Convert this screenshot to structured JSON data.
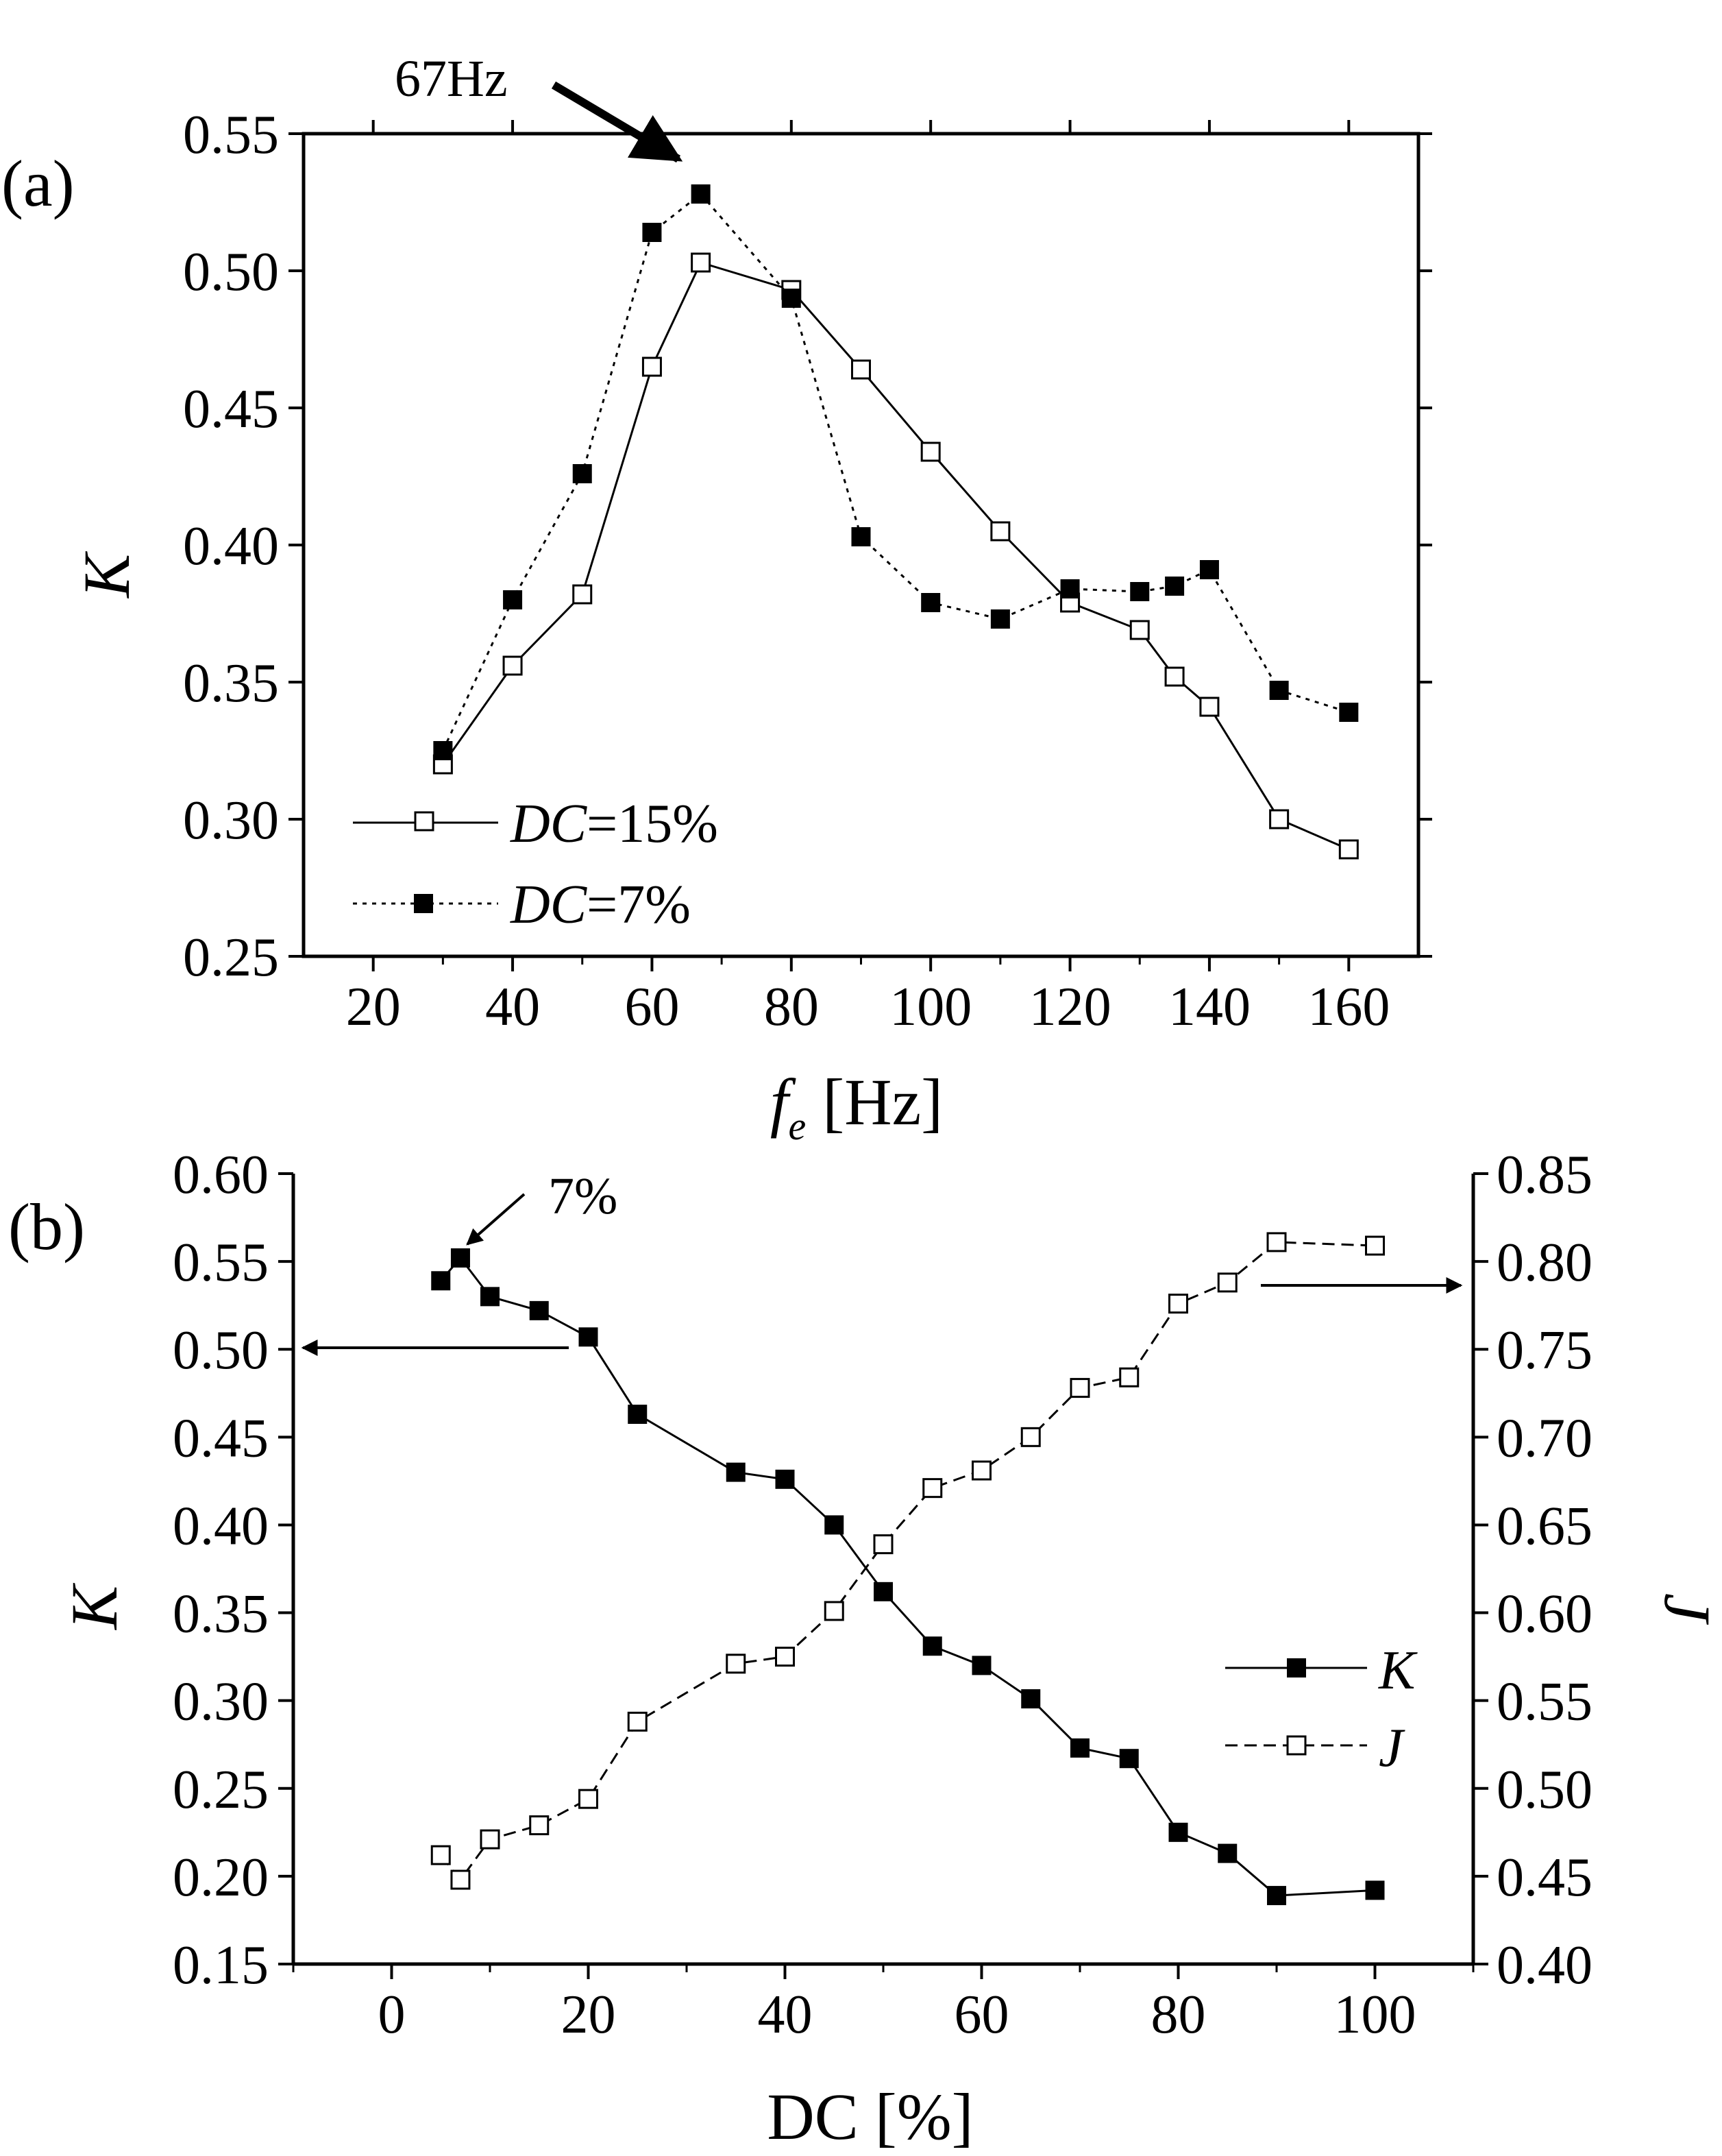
{
  "chart_data": [
    {
      "panel_label": "(a)",
      "type": "line",
      "xlabel": "f",
      "xlabel_sub": "e",
      "xlabel_unit": "[Hz]",
      "ylabel": "K",
      "xlim": [
        10,
        170
      ],
      "ylim": [
        0.25,
        0.55
      ],
      "xticks": [
        "20",
        "40",
        "60",
        "80",
        "100",
        "120",
        "140",
        "160"
      ],
      "yticks": [
        "0.25",
        "0.30",
        "0.35",
        "0.40",
        "0.45",
        "0.50",
        "0.55"
      ],
      "annotation": "67Hz",
      "legend_position": "bottom-left",
      "series": [
        {
          "name": "DC=15%",
          "legend_prefix": "DC",
          "legend_suffix": "=15%",
          "marker": "open-square",
          "line": "solid",
          "x": [
            30,
            40,
            50,
            60,
            67,
            80,
            90,
            100,
            110,
            120,
            130,
            135,
            140,
            150,
            160
          ],
          "y": [
            0.32,
            0.356,
            0.382,
            0.465,
            0.503,
            0.493,
            0.464,
            0.434,
            0.405,
            0.379,
            0.369,
            0.352,
            0.341,
            0.3,
            0.289
          ]
        },
        {
          "name": "DC=7%",
          "legend_prefix": "DC",
          "legend_suffix": "=7%",
          "marker": "filled-square",
          "line": "dotted",
          "x": [
            30,
            40,
            50,
            60,
            67,
            80,
            90,
            100,
            110,
            120,
            130,
            135,
            140,
            150,
            160
          ],
          "y": [
            0.325,
            0.38,
            0.426,
            0.514,
            0.528,
            0.49,
            0.403,
            0.379,
            0.373,
            0.384,
            0.383,
            0.385,
            0.391,
            0.347,
            0.339
          ]
        }
      ]
    },
    {
      "panel_label": "(b)",
      "type": "line",
      "xlabel": "DC",
      "xlabel_unit": "[%]",
      "ylabel": "K",
      "y2label": "J",
      "xlim": [
        -10,
        110
      ],
      "ylim": [
        0.15,
        0.6
      ],
      "y2lim": [
        0.4,
        0.85
      ],
      "xticks": [
        "0",
        "20",
        "40",
        "60",
        "80",
        "100"
      ],
      "yticks": [
        "0.15",
        "0.20",
        "0.25",
        "0.30",
        "0.35",
        "0.40",
        "0.45",
        "0.50",
        "0.55",
        "0.60"
      ],
      "y2ticks": [
        "0.40",
        "0.45",
        "0.50",
        "0.55",
        "0.60",
        "0.65",
        "0.70",
        "0.75",
        "0.80",
        "0.85"
      ],
      "annotation": "7%",
      "legend_position": "right",
      "series": [
        {
          "name": "K",
          "axis": "left",
          "marker": "filled-square",
          "line": "solid",
          "x": [
            5,
            7,
            10,
            15,
            20,
            25,
            35,
            40,
            45,
            50,
            55,
            60,
            65,
            70,
            75,
            80,
            85,
            90,
            100
          ],
          "y": [
            0.539,
            0.552,
            0.53,
            0.522,
            0.507,
            0.463,
            0.43,
            0.426,
            0.4,
            0.362,
            0.331,
            0.32,
            0.301,
            0.273,
            0.267,
            0.225,
            0.213,
            0.189,
            0.192
          ]
        },
        {
          "name": "J",
          "axis": "right",
          "marker": "open-square",
          "line": "dashed",
          "x": [
            5,
            7,
            10,
            15,
            20,
            25,
            35,
            40,
            45,
            50,
            55,
            60,
            65,
            70,
            75,
            80,
            85,
            90,
            100
          ],
          "y": [
            0.462,
            0.448,
            0.471,
            0.479,
            0.494,
            0.538,
            0.571,
            0.575,
            0.601,
            0.639,
            0.671,
            0.681,
            0.7,
            0.728,
            0.734,
            0.776,
            0.788,
            0.811,
            0.809
          ]
        }
      ]
    }
  ]
}
